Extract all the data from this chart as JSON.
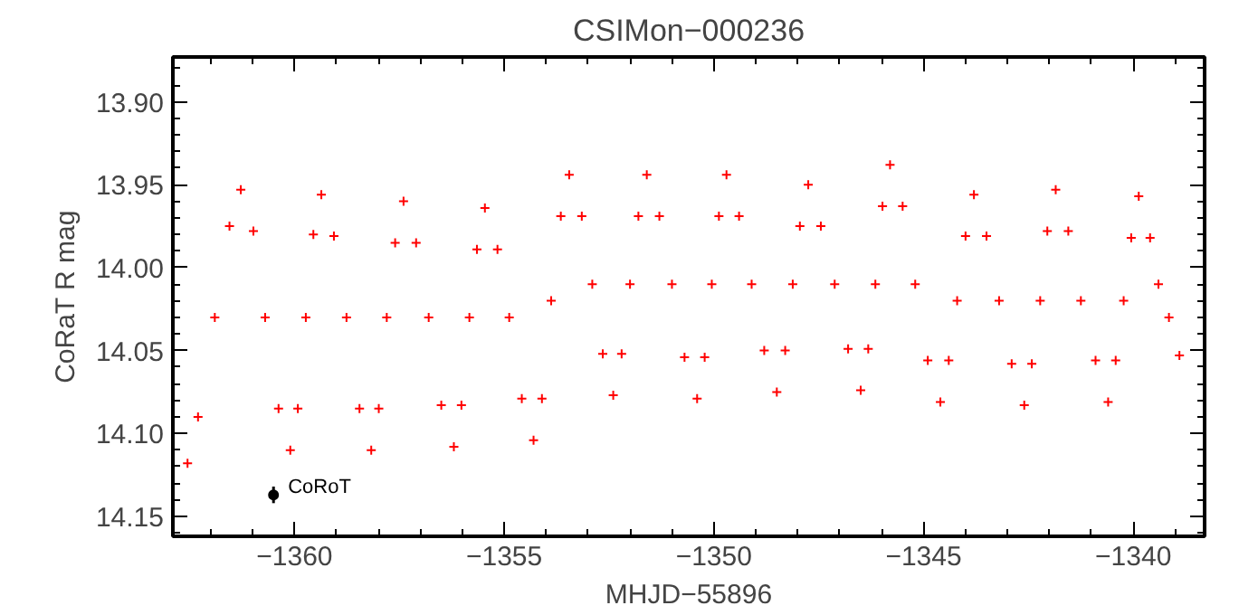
{
  "chart_data": {
    "type": "scatter",
    "title": "CSIMon−000236",
    "xlabel": "MHJD−55896",
    "ylabel": "CoRaT R mag",
    "xlim": [
      -1362.9,
      -1338.3
    ],
    "ylim": [
      14.162,
      13.873
    ],
    "xticks": [
      -1360,
      -1355,
      -1350,
      -1345,
      -1340
    ],
    "yticks": [
      {
        "value": 13.9,
        "label": "13.90"
      },
      {
        "value": 13.95,
        "label": "13.95"
      },
      {
        "value": 14.0,
        "label": "14.00"
      },
      {
        "value": 14.05,
        "label": "14.05"
      },
      {
        "value": 14.1,
        "label": "14.10"
      },
      {
        "value": 14.15,
        "label": "14.15"
      }
    ],
    "grid": false,
    "legend": false,
    "series": [
      {
        "color": "#ff0000",
        "marker": "cross",
        "x": [
          -1362.55,
          -1362.3,
          -1361.9,
          -1361.55,
          -1361.28,
          -1360.98,
          -1360.7,
          -1360.38,
          -1360.1,
          -1359.92,
          -1359.73,
          -1359.55,
          -1359.36,
          -1359.06,
          -1358.76,
          -1358.45,
          -1358.17,
          -1357.99,
          -1357.8,
          -1357.6,
          -1357.4,
          -1357.1,
          -1356.8,
          -1356.5,
          -1356.2,
          -1356.02,
          -1355.83,
          -1355.65,
          -1355.46,
          -1355.16,
          -1354.88,
          -1354.58,
          -1354.3,
          -1354.1,
          -1353.88,
          -1353.65,
          -1353.45,
          -1353.15,
          -1352.9,
          -1352.65,
          -1352.4,
          -1352.2,
          -1352.0,
          -1351.8,
          -1351.6,
          -1351.3,
          -1351.0,
          -1350.7,
          -1350.4,
          -1350.22,
          -1350.05,
          -1349.88,
          -1349.7,
          -1349.4,
          -1349.1,
          -1348.8,
          -1348.5,
          -1348.3,
          -1348.12,
          -1347.95,
          -1347.75,
          -1347.45,
          -1347.12,
          -1346.8,
          -1346.5,
          -1346.32,
          -1346.15,
          -1345.98,
          -1345.8,
          -1345.5,
          -1345.2,
          -1344.9,
          -1344.6,
          -1344.4,
          -1344.2,
          -1344.0,
          -1343.8,
          -1343.5,
          -1343.2,
          -1342.9,
          -1342.6,
          -1342.42,
          -1342.22,
          -1342.05,
          -1341.85,
          -1341.55,
          -1341.25,
          -1340.9,
          -1340.6,
          -1340.42,
          -1340.23,
          -1340.05,
          -1339.87,
          -1339.6,
          -1339.4,
          -1339.15,
          -1338.9
        ],
        "values": [
          14.118,
          14.09,
          14.03,
          13.975,
          13.953,
          13.978,
          14.03,
          14.085,
          14.11,
          14.085,
          14.03,
          13.98,
          13.956,
          13.981,
          14.03,
          14.085,
          14.11,
          14.085,
          14.03,
          13.985,
          13.96,
          13.985,
          14.03,
          14.083,
          14.108,
          14.083,
          14.03,
          13.989,
          13.964,
          13.989,
          14.03,
          14.079,
          14.104,
          14.079,
          14.02,
          13.969,
          13.944,
          13.969,
          14.01,
          14.052,
          14.077,
          14.052,
          14.01,
          13.969,
          13.944,
          13.969,
          14.01,
          14.054,
          14.079,
          14.054,
          14.01,
          13.969,
          13.944,
          13.969,
          14.01,
          14.05,
          14.075,
          14.05,
          14.01,
          13.975,
          13.95,
          13.975,
          14.01,
          14.049,
          14.074,
          14.049,
          14.01,
          13.963,
          13.938,
          13.963,
          14.01,
          14.056,
          14.081,
          14.056,
          14.02,
          13.981,
          13.956,
          13.981,
          14.02,
          14.058,
          14.083,
          14.058,
          14.02,
          13.978,
          13.953,
          13.978,
          14.02,
          14.056,
          14.081,
          14.056,
          14.02,
          13.982,
          13.957,
          13.982,
          14.01,
          14.03,
          14.053
        ]
      },
      {
        "name": "CoRoT",
        "color": "#000000",
        "marker": "circle",
        "x": [
          -1360.5
        ],
        "values": [
          14.137
        ],
        "errors": [
          0.005
        ]
      }
    ]
  }
}
